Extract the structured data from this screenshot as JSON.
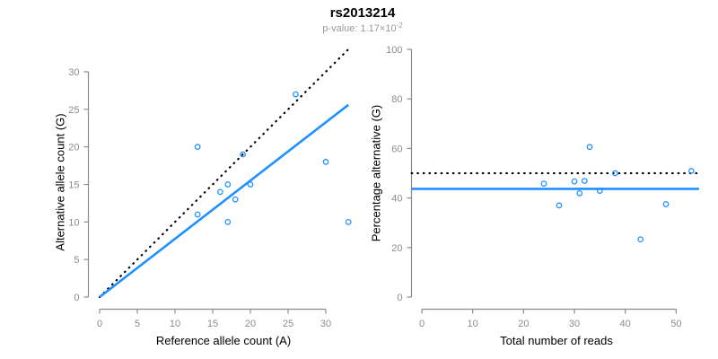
{
  "header": {
    "title": "rs2013214",
    "subtitle_text": "p-value: 1.17×10",
    "subtitle_exponent": "-2"
  },
  "colors": {
    "accent_blue": "#1E90FF",
    "line_black": "#000000",
    "axis_gray": "#8c8c8c",
    "tick_label_gray": "#8c8c8c",
    "subtitle_gray": "#989898",
    "title_black": "#000000"
  },
  "chart_data": [
    {
      "type": "scatter",
      "panel": "left",
      "xlabel": "Reference allele count (A)",
      "ylabel": "Alternative allele count (G)",
      "x_ticks": [
        0,
        5,
        10,
        15,
        20,
        25,
        30
      ],
      "y_ticks": [
        0,
        5,
        10,
        15,
        20,
        25,
        30
      ],
      "xlim": [
        0,
        33
      ],
      "ylim": [
        0,
        33
      ],
      "grid": false,
      "legend": false,
      "points": [
        [
          13,
          20
        ],
        [
          19,
          19
        ],
        [
          26,
          27
        ],
        [
          17,
          15
        ],
        [
          20,
          15
        ],
        [
          16,
          14
        ],
        [
          18,
          13
        ],
        [
          13,
          11
        ],
        [
          17,
          10
        ],
        [
          30,
          18
        ],
        [
          33,
          10
        ]
      ],
      "lines": [
        {
          "name": "identity-line",
          "style": "dotted",
          "color": "#000000",
          "x1": 0,
          "y1": 0,
          "x2": 33,
          "y2": 33
        },
        {
          "name": "fit-line",
          "style": "solid",
          "color": "#1E90FF",
          "x1": 0,
          "y1": 0,
          "x2": 33,
          "y2": 25.6
        }
      ]
    },
    {
      "type": "scatter",
      "panel": "right",
      "xlabel": "Total number of reads",
      "ylabel": "Percentage alternative (G)",
      "x_ticks": [
        0,
        10,
        20,
        30,
        40,
        50
      ],
      "y_ticks": [
        0,
        20,
        40,
        60,
        80,
        100
      ],
      "xlim": [
        0,
        53
      ],
      "ylim": [
        0,
        100
      ],
      "grid": false,
      "legend": false,
      "points": [
        [
          33,
          60.6
        ],
        [
          38,
          50.0
        ],
        [
          53,
          50.9
        ],
        [
          32,
          46.9
        ],
        [
          35,
          42.9
        ],
        [
          30,
          46.7
        ],
        [
          31,
          41.9
        ],
        [
          24,
          45.8
        ],
        [
          27,
          37.0
        ],
        [
          48,
          37.5
        ],
        [
          43,
          23.3
        ]
      ],
      "lines": [
        {
          "name": "expected-percentage-line",
          "style": "dotted",
          "color": "#000000",
          "x1": -2,
          "y1": 50,
          "x2": 54.5,
          "y2": 50
        },
        {
          "name": "mean-percentage-line",
          "style": "solid",
          "color": "#1E90FF",
          "x1": -2,
          "y1": 43.7,
          "x2": 54.5,
          "y2": 43.7
        }
      ]
    }
  ]
}
